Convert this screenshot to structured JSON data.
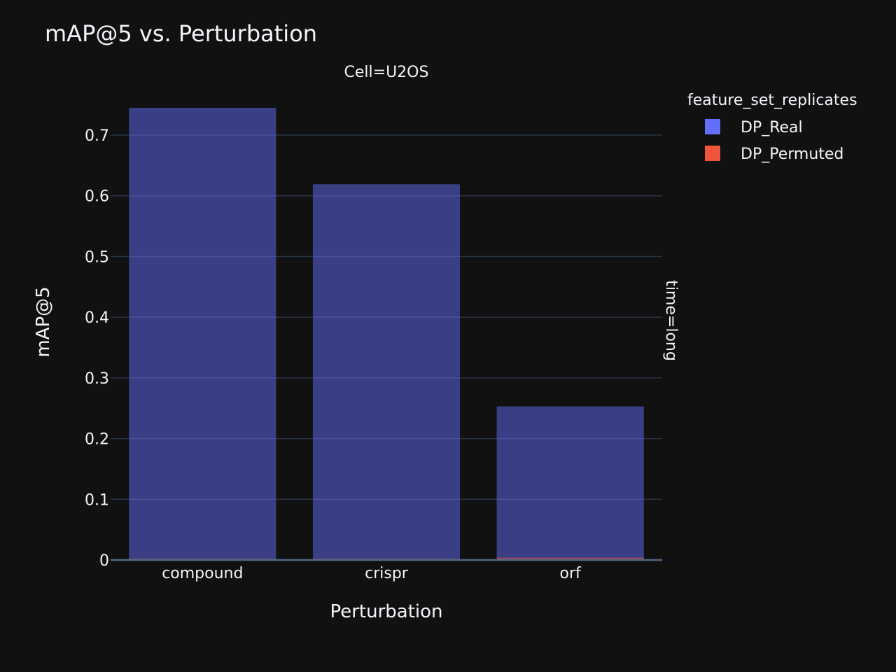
{
  "chart_data": {
    "type": "bar",
    "title": "mAP@5 vs. Perturbation",
    "facet_col_label": "Cell=U2OS",
    "facet_row_label": "time=long",
    "xlabel": "Perturbation",
    "ylabel": "mAP@5",
    "categories": [
      "compound",
      "crispr",
      "orf"
    ],
    "ylim": [
      0,
      0.745
    ],
    "yticks": [
      0,
      0.1,
      0.2,
      0.3,
      0.4,
      0.5,
      0.6,
      0.7
    ],
    "ytick_labels": [
      "0",
      "0.1",
      "0.2",
      "0.3",
      "0.4",
      "0.5",
      "0.6",
      "0.7"
    ],
    "grid": true,
    "barmode": "overlay",
    "legend": {
      "title": "feature_set_replicates",
      "placement": "top-right"
    },
    "series": [
      {
        "name": "DP_Real",
        "values": [
          0.745,
          0.619,
          0.253
        ],
        "color": "#636efa"
      },
      {
        "name": "DP_Permuted",
        "values": [
          0.002,
          0.002,
          0.004
        ],
        "color": "#ef553b"
      }
    ]
  }
}
